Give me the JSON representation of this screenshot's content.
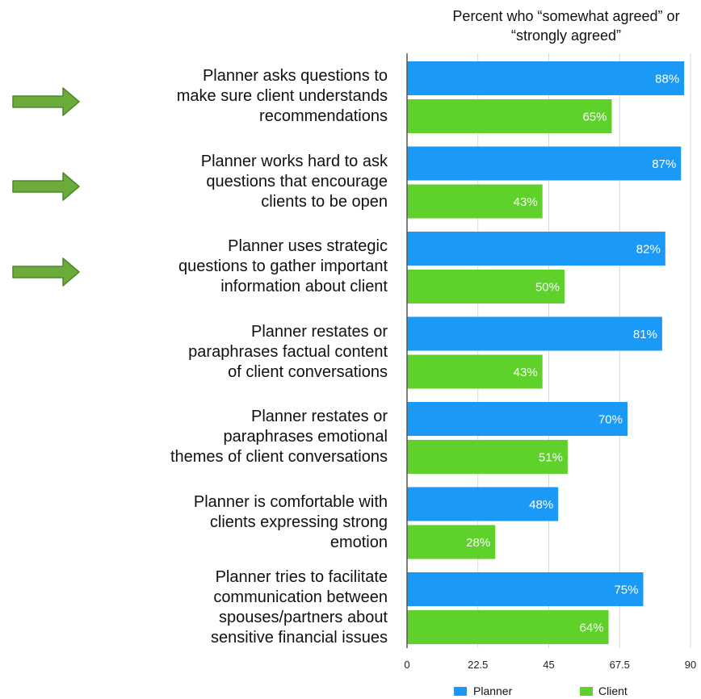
{
  "chart_data": {
    "type": "bar",
    "orientation": "horizontal",
    "title": "Percent who “somewhat agreed” or “strongly agreed”",
    "title_lines": [
      "Percent who “somewhat agreed” or",
      "“strongly agreed”"
    ],
    "categories": [
      "Planner asks questions to make sure client understands recommendations",
      "Planner works hard to ask questions that encourage clients to be open",
      "Planner uses strategic questions to gather important information about client",
      "Planner restates or paraphrases factual content of client conversations",
      "Planner restates or paraphrases emotional themes of client conversations",
      "Planner is comfortable with clients expressing strong emotion",
      "Planner tries to facilitate communication between spouses/partners about sensitive financial issues"
    ],
    "category_lines": [
      [
        "Planner asks questions to",
        "make sure client understands",
        "recommendations"
      ],
      [
        "Planner works hard to ask",
        "questions that encourage",
        "clients to be open"
      ],
      [
        "Planner uses strategic",
        "questions to gather important",
        "information about client"
      ],
      [
        "Planner restates or",
        "paraphrases factual content",
        "of client conversations"
      ],
      [
        "Planner restates or",
        "paraphrases emotional",
        "themes of client conversations"
      ],
      [
        "Planner is comfortable with",
        "clients expressing strong",
        "emotion"
      ],
      [
        "Planner tries to facilitate",
        "communication between",
        "spouses/partners about",
        "sensitive financial issues"
      ]
    ],
    "series": [
      {
        "name": "Planner",
        "color": "#1a9af6",
        "values": [
          88,
          87,
          82,
          81,
          70,
          48,
          75
        ],
        "labels": [
          "88%",
          "87%",
          "82%",
          "81%",
          "70%",
          "48%",
          "75%"
        ]
      },
      {
        "name": "Client",
        "color": "#5ed12a",
        "values": [
          65,
          43,
          50,
          43,
          51,
          28,
          64
        ],
        "labels": [
          "65%",
          "43%",
          "50%",
          "43%",
          "51%",
          "28%",
          "64%"
        ]
      }
    ],
    "xlim": [
      0,
      90
    ],
    "xticks": [
      0,
      22.5,
      45,
      67.5,
      90
    ],
    "xtick_labels": [
      "0",
      "22.5",
      "45",
      "67.5",
      "90"
    ],
    "grid": true,
    "legend_position": "bottom"
  },
  "annotations": {
    "arrow_color": "#6aab3b",
    "arrow_category_indices": [
      0,
      1,
      2
    ]
  }
}
